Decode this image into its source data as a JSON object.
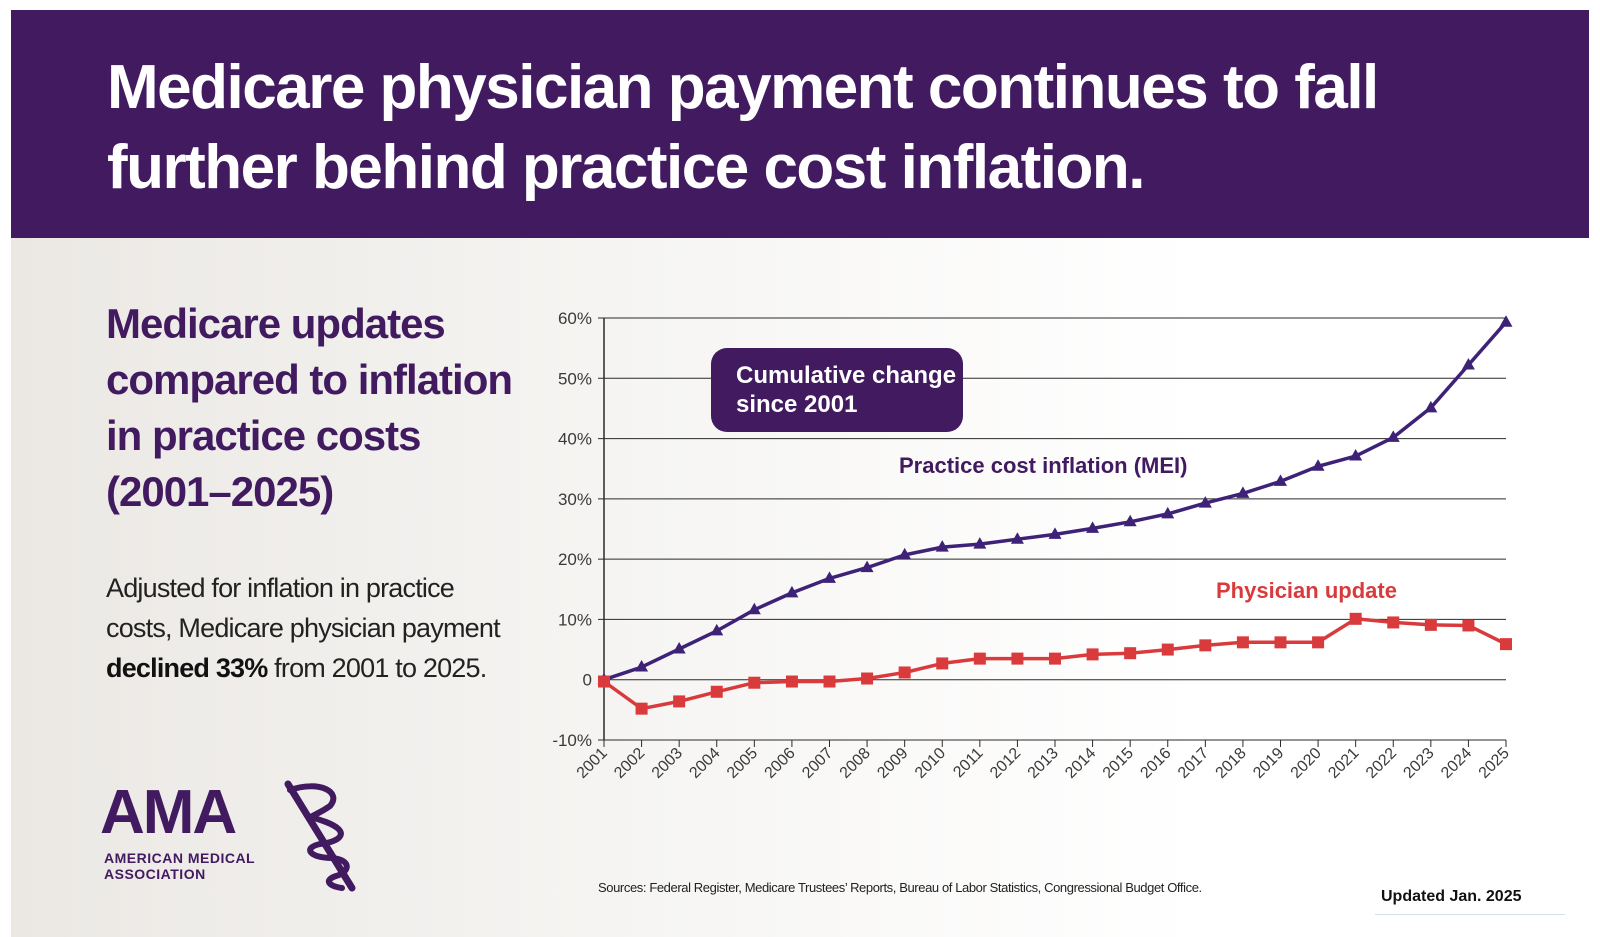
{
  "banner": {
    "title": "Medicare physician payment continues to fall further behind practice cost inflation."
  },
  "side": {
    "heading": "Medicare updates compared to inflation in practice costs (2001–2025)",
    "text_before": "Adjusted for inflation in practice costs, Medicare physician payment ",
    "text_bold": "declined 33%",
    "text_after": " from 2001 to 2025."
  },
  "logo": {
    "wordmark": "AMA",
    "line1": "AMERICAN MEDICAL",
    "line2": "ASSOCIATION",
    "icon": "staff-of-asclepius-icon"
  },
  "footer": {
    "sources": "Sources: Federal Register, Medicare Trustees’ Reports, Bureau of Labor Statistics, Congressional Budget Office.",
    "updated": "Updated Jan. 2025"
  },
  "colors": {
    "brand_purple": "#411a60",
    "mei_line": "#3d2278",
    "physician_line": "#d93a3c",
    "grid": "#222222"
  },
  "chart_data": {
    "type": "line",
    "annotation": [
      "Cumulative change",
      "since 2001"
    ],
    "x": [
      "2001",
      "2002",
      "2003",
      "2004",
      "2005",
      "2006",
      "2007",
      "2008",
      "2009",
      "2010",
      "2011",
      "2012",
      "2013",
      "2014",
      "2015",
      "2016",
      "2017",
      "2018",
      "2019",
      "2020",
      "2021",
      "2022",
      "2023",
      "2024",
      "2025"
    ],
    "y_ticks": [
      {
        "value": 60,
        "label": "60%"
      },
      {
        "value": 50,
        "label": "50%"
      },
      {
        "value": 40,
        "label": "40%"
      },
      {
        "value": 30,
        "label": "30%"
      },
      {
        "value": 20,
        "label": "20%"
      },
      {
        "value": 10,
        "label": "10%"
      },
      {
        "value": 0,
        "label": "0"
      },
      {
        "value": -10,
        "label": "-10%"
      }
    ],
    "ylim": [
      -10,
      60
    ],
    "grid": true,
    "series": [
      {
        "name": "Practice cost inflation (MEI)",
        "marker": "triangle",
        "color": "#3d2278",
        "values": [
          0,
          2.1,
          5.1,
          8.1,
          11.6,
          14.4,
          16.8,
          18.6,
          20.7,
          22.0,
          22.5,
          23.3,
          24.1,
          25.1,
          26.2,
          27.5,
          29.3,
          30.9,
          32.9,
          35.4,
          37.1,
          40.2,
          45.1,
          52.2,
          59.3
        ]
      },
      {
        "name": "Physician update",
        "marker": "square",
        "color": "#d93a3c",
        "values": [
          -0.3,
          -4.8,
          -3.6,
          -2.0,
          -0.5,
          -0.3,
          -0.3,
          0.2,
          1.2,
          2.7,
          3.5,
          3.5,
          3.5,
          4.2,
          4.4,
          5.0,
          5.7,
          6.2,
          6.2,
          6.2,
          10.1,
          9.5,
          9.1,
          9.0,
          5.9
        ]
      }
    ]
  }
}
